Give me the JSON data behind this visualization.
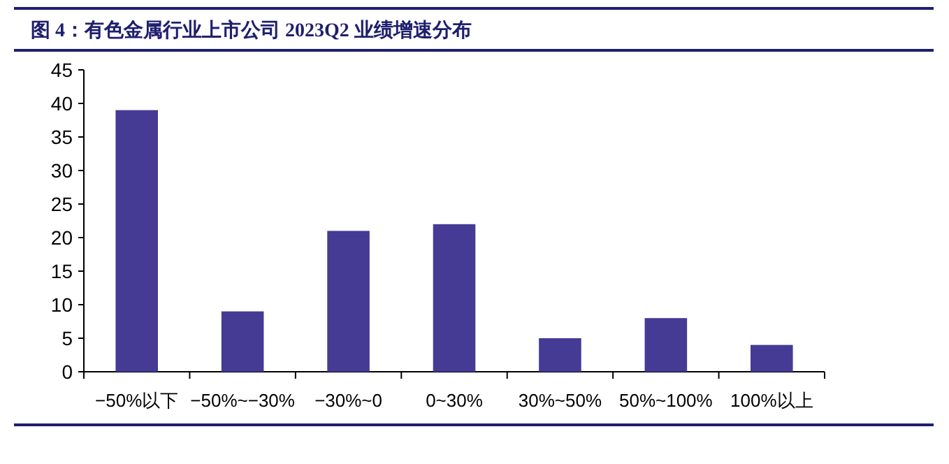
{
  "chart_data": {
    "type": "bar",
    "title": "图 4：有色金属行业上市公司 2023Q2 业绩增速分布",
    "categories": [
      "−50%以下",
      "−50%~−30%",
      "−30%~0",
      "0~30%",
      "30%~50%",
      "50%~100%",
      "100%以上"
    ],
    "values": [
      39,
      9,
      21,
      22,
      5,
      8,
      4
    ],
    "color": "#453a94",
    "ylim": [
      0,
      45
    ],
    "yticks": [
      0,
      5,
      10,
      15,
      20,
      25,
      30,
      35,
      40,
      45
    ],
    "grid": false
  }
}
